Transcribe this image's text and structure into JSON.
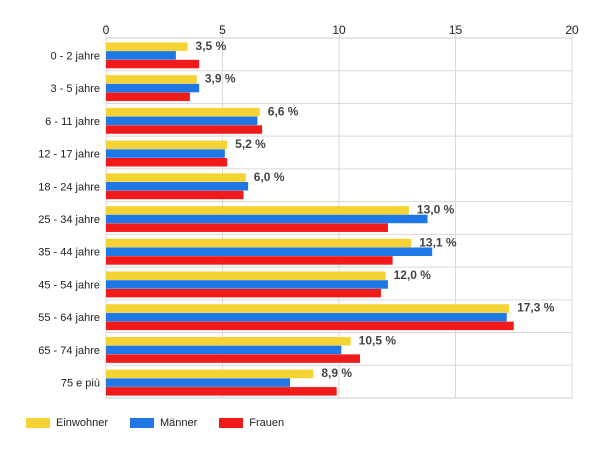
{
  "chart_data": {
    "type": "bar",
    "orientation": "horizontal",
    "xlim": [
      0,
      20
    ],
    "x_ticks": [
      "0",
      "5",
      "10",
      "15",
      "20"
    ],
    "grid": true,
    "legend_position": "bottom-left",
    "categories": [
      "0 - 2 jahre",
      "3 - 5 jahre",
      "6 - 11 jahre",
      "12 - 17 jahre",
      "18 - 24 jahre",
      "25 - 34 jahre",
      "35 - 44 jahre",
      "45 - 54 jahre",
      "55 - 64 jahre",
      "65 - 74 jahre",
      "75 e più"
    ],
    "series": [
      {
        "name": "Einwohner",
        "color": "#f5d334",
        "values": [
          3.5,
          3.9,
          6.6,
          5.2,
          6.0,
          13.0,
          13.1,
          12.0,
          17.3,
          10.5,
          8.9
        ]
      },
      {
        "name": "Männer",
        "color": "#1f78e6",
        "values": [
          3.0,
          4.0,
          6.5,
          5.1,
          6.1,
          13.8,
          14.0,
          12.1,
          17.2,
          10.1,
          7.9
        ]
      },
      {
        "name": "Frauen",
        "color": "#f01a1a",
        "values": [
          4.0,
          3.6,
          6.7,
          5.2,
          5.9,
          12.1,
          12.3,
          11.8,
          17.5,
          10.9,
          9.9
        ]
      }
    ],
    "data_labels": [
      "3,5 %",
      "3,9 %",
      "6,6 %",
      "5,2 %",
      "6,0 %",
      "13,0 %",
      "13,1 %",
      "12,0 %",
      "17,3 %",
      "10,5 %",
      "8,9 %"
    ]
  }
}
